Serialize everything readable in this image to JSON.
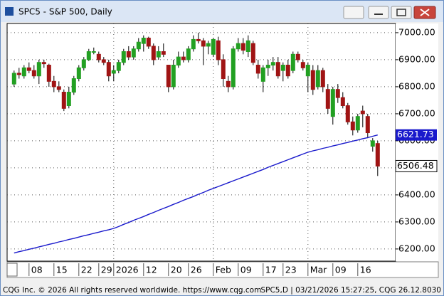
{
  "window": {
    "title": "SPC5 - S&P 500, Daily"
  },
  "footer": {
    "left": "CQG Inc. © 2026 All rights reserved worldwide. https://www.cqg.com",
    "right": "SPC5,D | 03/21/2026 15:27:25, CQG 26.12.8030"
  },
  "chart_data": {
    "type": "candlestick",
    "up_color": "#22a022",
    "down_color": "#a01414",
    "xlim": [
      -1.4,
      76.6
    ],
    "xticks": [
      {
        "value": 3,
        "label": "08"
      },
      {
        "value": 8,
        "label": "15"
      },
      {
        "value": 13,
        "label": "22"
      },
      {
        "value": 17,
        "label": "29"
      },
      {
        "value": 20,
        "label": "2026"
      },
      {
        "value": 26,
        "label": "12"
      },
      {
        "value": 31,
        "label": "20"
      },
      {
        "value": 35,
        "label": "26"
      },
      {
        "value": 40,
        "label": "Feb"
      },
      {
        "value": 45,
        "label": "09"
      },
      {
        "value": 50,
        "label": "17"
      },
      {
        "value": 54,
        "label": "23"
      },
      {
        "value": 59,
        "label": "Mar"
      },
      {
        "value": 64,
        "label": "09"
      },
      {
        "value": 69,
        "label": "16"
      }
    ],
    "xgrid": [
      20,
      40,
      59
    ],
    "ylim": [
      6155,
      7034
    ],
    "yticks": [
      {
        "value": 6200,
        "label": "6200.00"
      },
      {
        "value": 6300,
        "label": "6300.00"
      },
      {
        "value": 6400,
        "label": "6400.00"
      },
      {
        "value": 6500,
        "label": "6500.00"
      },
      {
        "value": 6600,
        "label": "6600.00"
      },
      {
        "value": 6700,
        "label": "6700.00"
      },
      {
        "value": 6800,
        "label": "6800.00"
      },
      {
        "value": 6900,
        "label": "6900.00"
      },
      {
        "value": 7000,
        "label": "7000.00"
      }
    ],
    "grid": true,
    "open": [
      6810,
      6850,
      6840,
      6870,
      6860,
      6840,
      6890,
      6880,
      6820,
      6800,
      6780,
      6730,
      6780,
      6830,
      6870,
      6900,
      6930,
      6920,
      6900,
      6890,
      6850,
      6860,
      6890,
      6930,
      6910,
      6940,
      6960,
      6980,
      6950,
      6910,
      6930,
      6880,
      6800,
      6880,
      6910,
      6900,
      6940,
      6975,
      6970,
      6950,
      6920,
      6970,
      6900,
      6820,
      6800,
      6940,
      6960,
      6930,
      6960,
      6880,
      6820,
      6870,
      6880,
      6890,
      6860,
      6880,
      6860,
      6920,
      6890,
      6840,
      6860,
      6800,
      6860,
      6790,
      6690,
      6790,
      6760,
      6730,
      6670,
      6640,
      6710,
      6690,
      6580,
      6590
    ],
    "high": [
      6860,
      6870,
      6880,
      6890,
      6880,
      6900,
      6900,
      6885,
      6840,
      6820,
      6790,
      6800,
      6840,
      6880,
      6910,
      6940,
      6945,
      6930,
      6910,
      6900,
      6880,
      6900,
      6940,
      6950,
      6950,
      6980,
      6990,
      6985,
      6960,
      6950,
      6960,
      6880,
      6900,
      6930,
      6930,
      6950,
      6990,
      7000,
      6980,
      6970,
      6980,
      6985,
      6920,
      6840,
      6950,
      6980,
      6980,
      6990,
      6970,
      6900,
      6880,
      6900,
      6910,
      6910,
      6890,
      6900,
      6930,
      6930,
      6900,
      6890,
      6880,
      6880,
      6870,
      6810,
      6800,
      6810,
      6780,
      6740,
      6690,
      6700,
      6730,
      6700,
      6610,
      6600
    ],
    "low": [
      6800,
      6830,
      6830,
      6850,
      6830,
      6810,
      6870,
      6800,
      6780,
      6780,
      6710,
      6720,
      6770,
      6820,
      6860,
      6895,
      6920,
      6890,
      6880,
      6820,
      6820,
      6850,
      6880,
      6900,
      6900,
      6930,
      6930,
      6940,
      6880,
      6900,
      6910,
      6780,
      6790,
      6870,
      6890,
      6890,
      6930,
      6960,
      6880,
      6920,
      6910,
      6880,
      6800,
      6780,
      6790,
      6930,
      6920,
      6910,
      6880,
      6830,
      6780,
      6840,
      6860,
      6830,
      6820,
      6830,
      6850,
      6890,
      6860,
      6780,
      6770,
      6790,
      6780,
      6700,
      6660,
      6740,
      6720,
      6660,
      6620,
      6630,
      6650,
      6610,
      6560,
      6470
    ],
    "close": [
      6850,
      6845,
      6870,
      6860,
      6840,
      6890,
      6885,
      6820,
      6800,
      6790,
      6720,
      6780,
      6830,
      6870,
      6900,
      6930,
      6930,
      6900,
      6890,
      6840,
      6860,
      6890,
      6930,
      6910,
      6940,
      6965,
      6980,
      6950,
      6900,
      6930,
      6920,
      6800,
      6880,
      6910,
      6900,
      6940,
      6975,
      6970,
      6950,
      6960,
      6975,
      6900,
      6830,
      6800,
      6940,
      6960,
      6935,
      6970,
      6890,
      6850,
      6870,
      6880,
      6890,
      6840,
      6880,
      6840,
      6920,
      6900,
      6870,
      6880,
      6790,
      6860,
      6800,
      6720,
      6790,
      6760,
      6730,
      6670,
      6640,
      6690,
      6700,
      6630,
      6600,
      6506.48
    ],
    "ma": {
      "color": "#1a1acc",
      "values": [
        6185,
        6190,
        6194,
        6199,
        6203,
        6208,
        6212,
        6217,
        6221,
        6226,
        6230,
        6235,
        6239,
        6244,
        6249,
        6253,
        6258,
        6262,
        6267,
        6271,
        6276,
        6283,
        6291,
        6298,
        6306,
        6313,
        6320,
        6328,
        6335,
        6343,
        6350,
        6357,
        6365,
        6372,
        6380,
        6387,
        6394,
        6402,
        6409,
        6417,
        6424,
        6431,
        6438,
        6445,
        6452,
        6459,
        6466,
        6473,
        6480,
        6487,
        6494,
        6502,
        6509,
        6516,
        6523,
        6530,
        6537,
        6544,
        6551,
        6558,
        6563,
        6567,
        6572,
        6576,
        6581,
        6585,
        6590,
        6594,
        6599,
        6603,
        6608,
        6612,
        6617,
        6621.73
      ]
    }
  }
}
